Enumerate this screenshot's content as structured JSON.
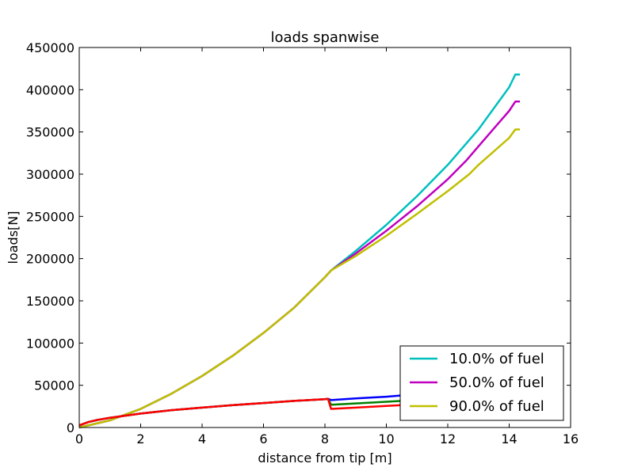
{
  "chart_data": {
    "type": "line",
    "title": "loads spanwise",
    "xlabel": "distance from tip [m]",
    "ylabel": "loads[N]",
    "xlim": [
      0,
      16
    ],
    "ylim": [
      0,
      450000
    ],
    "xticks": [
      0,
      2,
      4,
      6,
      8,
      10,
      12,
      14,
      16
    ],
    "yticks": [
      0,
      50000,
      100000,
      150000,
      200000,
      250000,
      300000,
      350000,
      400000,
      450000
    ],
    "grid": false,
    "legend_position": "lower-right",
    "series": [
      {
        "name": "10.0% of fuel",
        "color": "#00bfbf",
        "in_legend": true,
        "points": [
          [
            0,
            0
          ],
          [
            1,
            8500
          ],
          [
            2,
            22000
          ],
          [
            3,
            40000
          ],
          [
            4,
            61000
          ],
          [
            5,
            85000
          ],
          [
            6,
            112000
          ],
          [
            7,
            142000
          ],
          [
            8,
            178000
          ],
          [
            8.2,
            186000
          ],
          [
            9,
            209000
          ],
          [
            10,
            240000
          ],
          [
            11,
            274000
          ],
          [
            12,
            311000
          ],
          [
            13,
            353000
          ],
          [
            14,
            403000
          ],
          [
            14.2,
            418000
          ],
          [
            14.35,
            418000
          ]
        ]
      },
      {
        "name": "50.0% of fuel",
        "color": "#bf00bf",
        "in_legend": true,
        "points": [
          [
            0,
            0
          ],
          [
            1,
            8500
          ],
          [
            2,
            22000
          ],
          [
            3,
            40000
          ],
          [
            4,
            61000
          ],
          [
            5,
            85000
          ],
          [
            6,
            112000
          ],
          [
            7,
            142000
          ],
          [
            8,
            178000
          ],
          [
            8.2,
            186000
          ],
          [
            9,
            206000
          ],
          [
            10,
            233000
          ],
          [
            11,
            262000
          ],
          [
            12,
            294000
          ],
          [
            12.6,
            316000
          ],
          [
            13,
            333000
          ],
          [
            14,
            375000
          ],
          [
            14.2,
            386000
          ],
          [
            14.35,
            386000
          ]
        ]
      },
      {
        "name": "90.0% of fuel",
        "color": "#bfbf00",
        "in_legend": true,
        "points": [
          [
            0,
            0
          ],
          [
            1,
            8500
          ],
          [
            2,
            22000
          ],
          [
            3,
            40000
          ],
          [
            4,
            61000
          ],
          [
            5,
            85000
          ],
          [
            6,
            112000
          ],
          [
            7,
            142000
          ],
          [
            8,
            178000
          ],
          [
            8.2,
            186000
          ],
          [
            9,
            203000
          ],
          [
            10,
            227000
          ],
          [
            11,
            253000
          ],
          [
            12,
            280000
          ],
          [
            12.7,
            300000
          ],
          [
            13,
            311000
          ],
          [
            14,
            343000
          ],
          [
            14.2,
            353000
          ],
          [
            14.35,
            353000
          ]
        ]
      },
      {
        "name": "",
        "color": "#0000ff",
        "in_legend": false,
        "points": [
          [
            0,
            2500
          ],
          [
            0.3,
            6500
          ],
          [
            0.6,
            9000
          ],
          [
            1,
            11500
          ],
          [
            2,
            16500
          ],
          [
            3,
            20500
          ],
          [
            4,
            23500
          ],
          [
            5,
            26500
          ],
          [
            6,
            29000
          ],
          [
            7,
            31500
          ],
          [
            8,
            33500
          ],
          [
            8.1,
            34000
          ],
          [
            8.2,
            32500
          ],
          [
            9,
            34500
          ],
          [
            10,
            36500
          ],
          [
            10.5,
            38000
          ]
        ]
      },
      {
        "name": "",
        "color": "#008000",
        "in_legend": false,
        "points": [
          [
            0,
            2500
          ],
          [
            0.3,
            6500
          ],
          [
            0.6,
            9000
          ],
          [
            1,
            11500
          ],
          [
            2,
            16500
          ],
          [
            3,
            20500
          ],
          [
            4,
            23500
          ],
          [
            5,
            26500
          ],
          [
            6,
            29000
          ],
          [
            7,
            31500
          ],
          [
            8,
            33500
          ],
          [
            8.1,
            34000
          ],
          [
            8.2,
            27000
          ],
          [
            9,
            28500
          ],
          [
            10,
            30500
          ],
          [
            10.5,
            31500
          ]
        ]
      },
      {
        "name": "",
        "color": "#ff0000",
        "in_legend": false,
        "points": [
          [
            0,
            2500
          ],
          [
            0.3,
            6500
          ],
          [
            0.6,
            9000
          ],
          [
            1,
            11500
          ],
          [
            2,
            16500
          ],
          [
            3,
            20500
          ],
          [
            4,
            23500
          ],
          [
            5,
            26500
          ],
          [
            6,
            29000
          ],
          [
            7,
            31500
          ],
          [
            8,
            33500
          ],
          [
            8.1,
            34000
          ],
          [
            8.2,
            22000
          ],
          [
            9,
            23500
          ],
          [
            10,
            25500
          ],
          [
            10.5,
            26500
          ]
        ]
      }
    ]
  }
}
